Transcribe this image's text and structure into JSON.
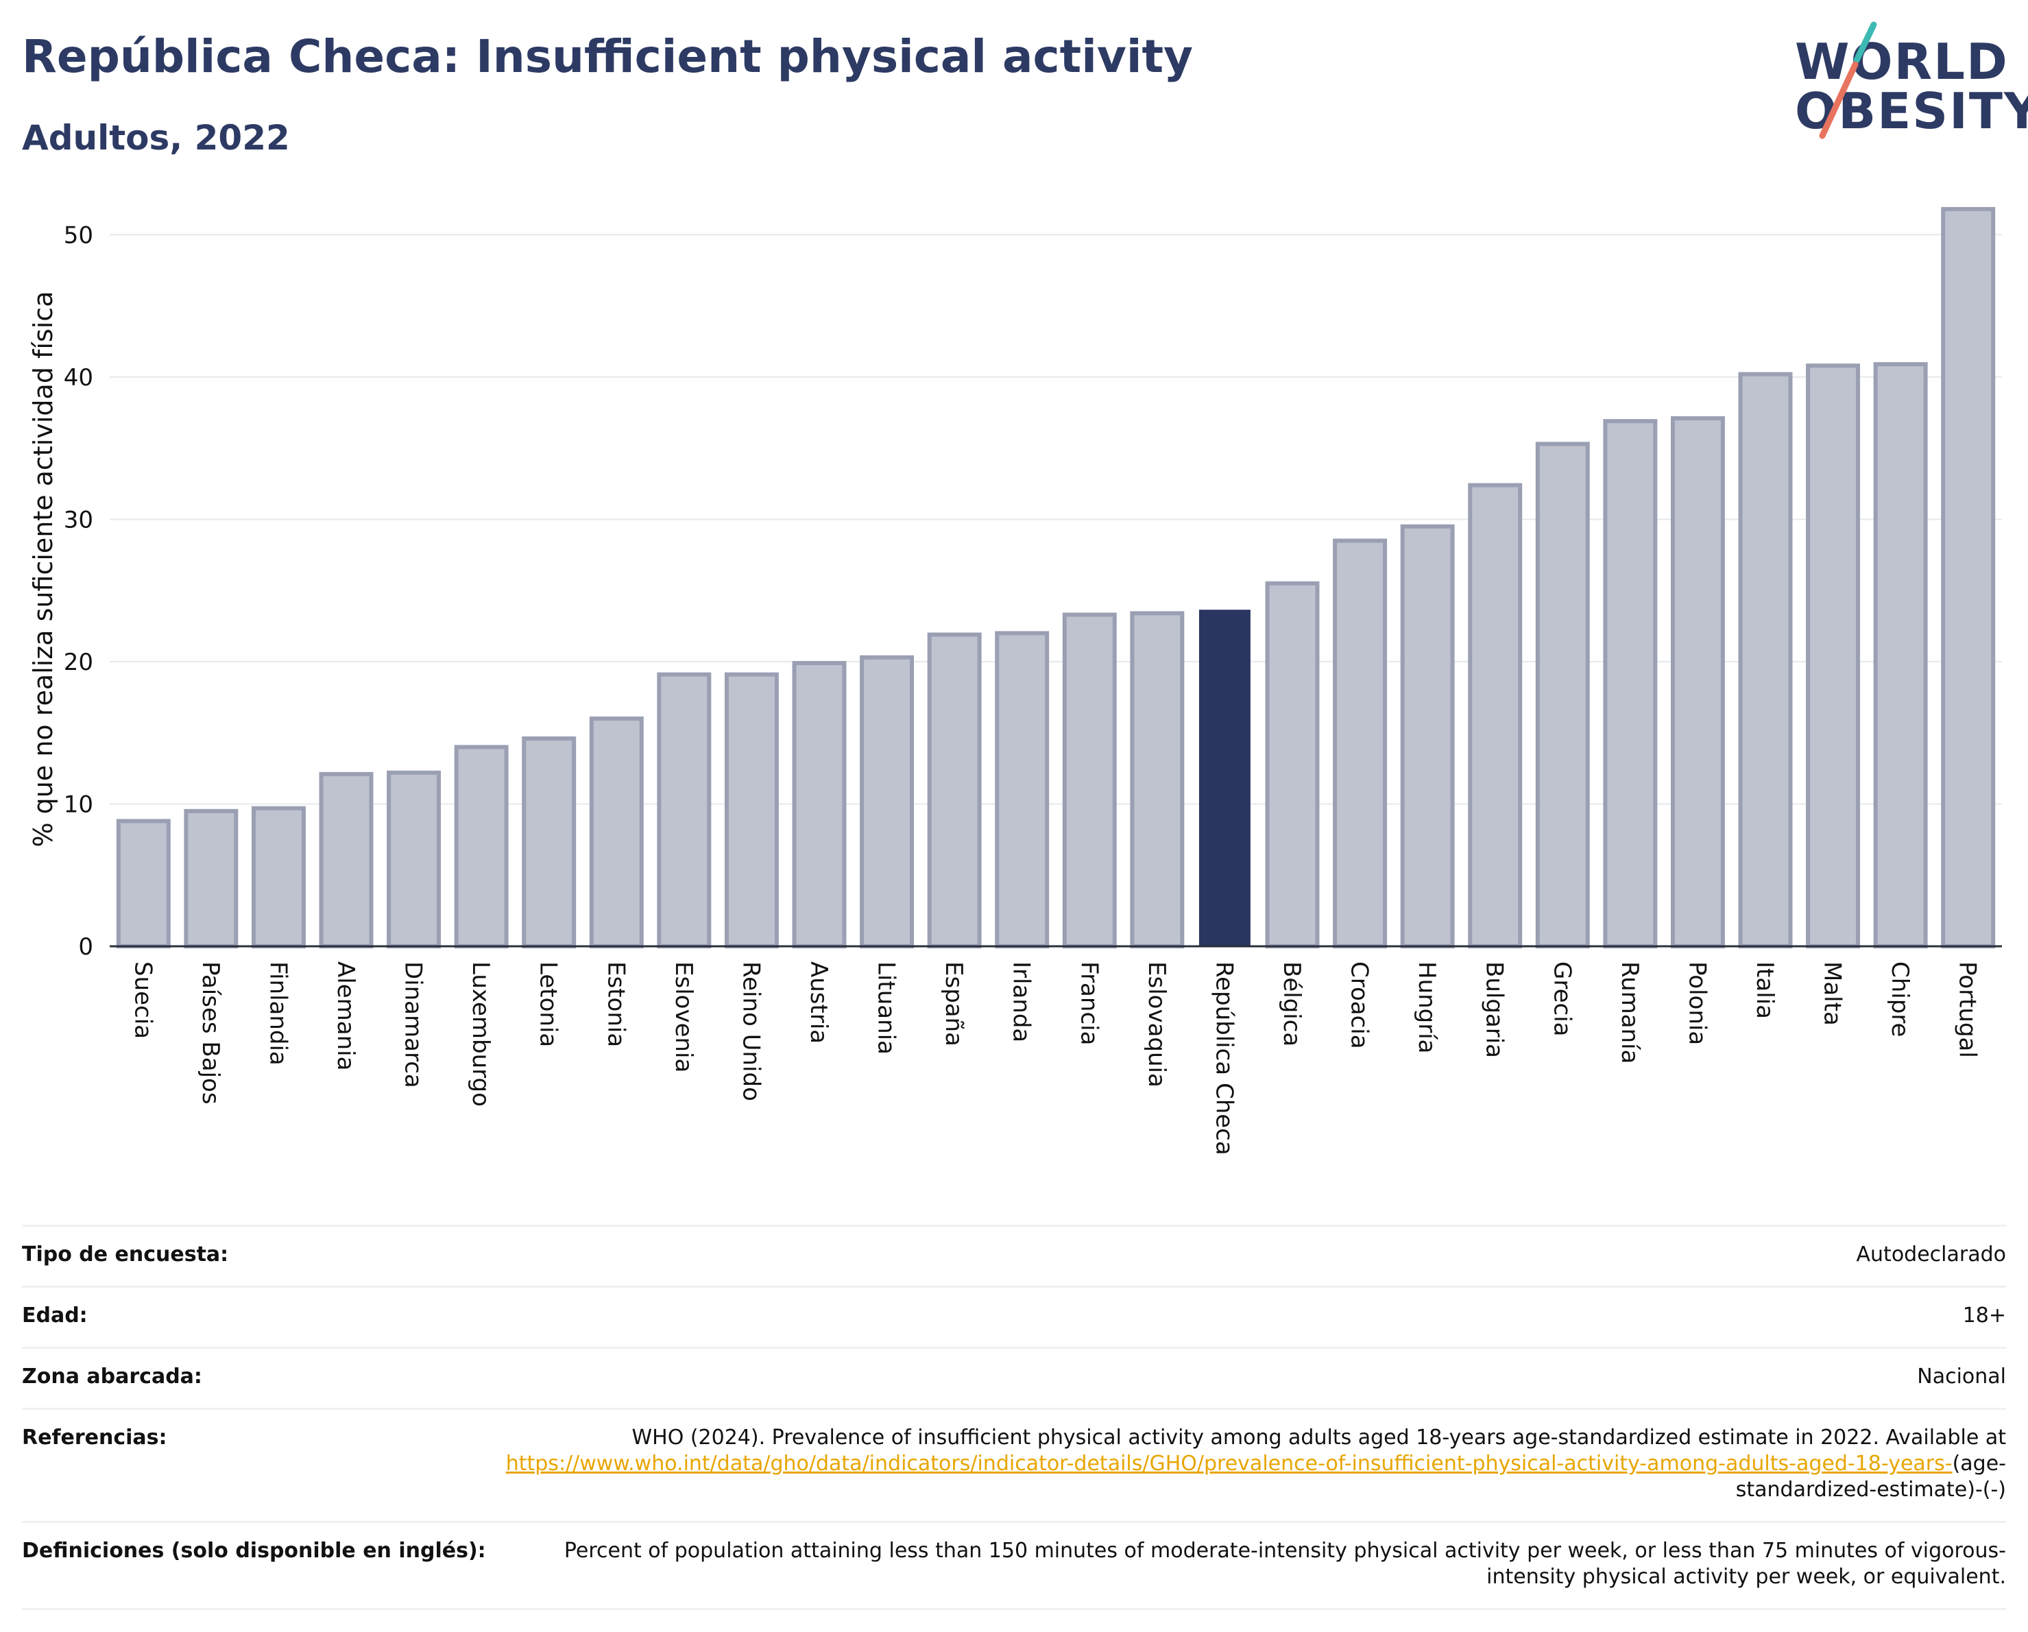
{
  "header": {
    "title": "República Checa: Insufficient physical activity",
    "subtitle": "Adultos, 2022"
  },
  "logo": {
    "line1": "WORLD",
    "line2": "OBESITY",
    "accent_teal": "#3bb9b2",
    "accent_coral": "#e8735e"
  },
  "colors": {
    "bar": "#bfc2cf",
    "bar_edge": "#9a9fb3",
    "highlight": "#2b3561",
    "text_navy": "#2d3a63",
    "link": "#e8a500"
  },
  "chart_data": {
    "type": "bar",
    "ylabel": "% que no realiza suficiente actividad física",
    "xlabel": "",
    "ylim": [
      0,
      53
    ],
    "yticks": [
      0,
      10,
      20,
      30,
      40,
      50
    ],
    "grid": true,
    "highlight": "República Checa",
    "categories": [
      "Suecia",
      "Países Bajos",
      "Finlandia",
      "Alemania",
      "Dinamarca",
      "Luxemburgo",
      "Letonia",
      "Estonia",
      "Eslovenia",
      "Reino Unido",
      "Austria",
      "Lituania",
      "España",
      "Irlanda",
      "Francia",
      "Eslovaquia",
      "República Checa",
      "Bélgica",
      "Croacia",
      "Hungría",
      "Bulgaria",
      "Grecia",
      "Rumanía",
      "Polonia",
      "Italia",
      "Malta",
      "Chipre",
      "Portugal"
    ],
    "values": [
      8.8,
      9.5,
      9.7,
      12.1,
      12.2,
      14.0,
      14.6,
      16.0,
      19.1,
      19.1,
      19.9,
      20.3,
      21.9,
      22.0,
      23.3,
      23.4,
      23.6,
      25.5,
      28.5,
      29.5,
      32.4,
      35.3,
      36.9,
      37.1,
      40.2,
      40.8,
      40.9,
      51.8
    ]
  },
  "info": {
    "rows": [
      {
        "label": "Tipo de encuesta:",
        "value": "Autodeclarado"
      },
      {
        "label": "Edad:",
        "value": "18+"
      },
      {
        "label": "Zona abarcada:",
        "value": "Nacional"
      }
    ],
    "references": {
      "label": "Referencias:",
      "text": "WHO (2024). Prevalence of insufficient physical activity among adults aged 18-years age-standardized estimate in 2022. Available at",
      "link": "https://www.who.int/data/gho/data/indicators/indicator-details/GHO/prevalence-of-insufficient-physical-activity-among-adults-aged-18-years-",
      "suffix": "(age-standardized-estimate)-(-)"
    },
    "definitions": {
      "label": "Definiciones (solo disponible en inglés):",
      "text": "Percent of population attaining less than 150 minutes of moderate-intensity physical activity per week, or less than 75 minutes of vigorous-intensity physical activity per week, or equivalent."
    }
  }
}
